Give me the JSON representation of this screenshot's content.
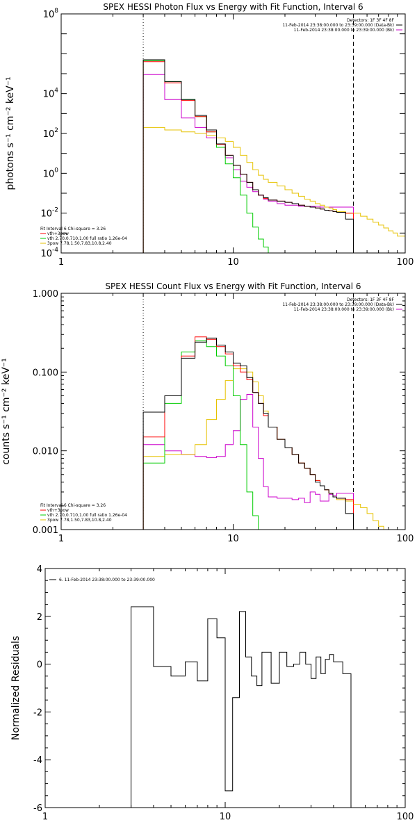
{
  "chart_data": [
    {
      "type": "line",
      "title": "SPEX HESSI Photon Flux vs Energy with Fit Function, Interval 6",
      "ylabel": "photons s⁻¹ cm⁻² keV⁻¹",
      "xlabel": "",
      "xscale": "log",
      "yscale": "log",
      "xlim": [
        1,
        100
      ],
      "ylim": [
        0.0001,
        100000000
      ],
      "xticks": [
        {
          "v": 1,
          "label": "1"
        },
        {
          "v": 10,
          "label": "10"
        },
        {
          "v": 100,
          "label": "100"
        }
      ],
      "yticks": [
        {
          "v": 0.0001,
          "base": "10",
          "exp": "-4"
        },
        {
          "v": 0.01,
          "base": "10",
          "exp": "-2"
        },
        {
          "v": 1,
          "base": "10",
          "exp": "0"
        },
        {
          "v": 100,
          "base": "10",
          "exp": "2"
        },
        {
          "v": 10000,
          "base": "10",
          "exp": "4"
        },
        {
          "v": 100000000,
          "base": "10",
          "exp": "8"
        }
      ],
      "vlines": [
        {
          "x": 3,
          "style": "dotted"
        },
        {
          "x": 50,
          "style": "dashed"
        }
      ],
      "legend_top": [
        {
          "text": "Detectors: 1F 3F 4F 8F",
          "color": "#000000"
        },
        {
          "text": "11-Feb-2014 23:38:00.000 to 23:39:00.000 (Data-Bk)",
          "color": "#000000"
        },
        {
          "text": "11-Feb-2014 23:38:00.000 to 23:39:00.000 (Bk)",
          "color": "#cc00cc"
        }
      ],
      "legend_bottom": [
        {
          "text": "Fit Interval 6   Chi-square = 3.26",
          "color": "#000000"
        },
        {
          "text": "vth+3pow",
          "color": "#ff0000"
        },
        {
          "text": "vth 2.70,0.710,1.00  full ratio 1.26e-04",
          "color": "#00cc00"
        },
        {
          "text": "3pow 7.78,1.50,7.83,10.8,2.40",
          "color": "#e6c200"
        }
      ],
      "edges": [
        3,
        4,
        5,
        6,
        7,
        8,
        9,
        10,
        11,
        12,
        13,
        14,
        15,
        16,
        18,
        20,
        22,
        24,
        26,
        28,
        30,
        32,
        34,
        36,
        38,
        40,
        45,
        50
      ],
      "series": [
        {
          "name": "Data-Bk",
          "color": "#000000",
          "values": [
            500000,
            40000,
            5000,
            800,
            150,
            30,
            8,
            2.5,
            0.9,
            0.35,
            0.15,
            0.08,
            0.06,
            0.045,
            0.04,
            0.035,
            0.03,
            0.025,
            0.022,
            0.02,
            0.018,
            0.016,
            0.014,
            0.013,
            0.012,
            0.011,
            0.005
          ]
        },
        {
          "name": "vth+3pow",
          "color": "#ff0000",
          "values": [
            400000,
            35000,
            4500,
            700,
            120,
            28,
            8,
            2.5,
            0.9,
            0.35,
            0.15,
            0.08,
            0.055,
            0.045,
            0.04,
            0.035,
            0.03,
            0.025,
            0.022,
            0.02,
            0.018,
            0.016,
            0.014,
            0.013,
            0.012,
            0.011,
            0.01
          ]
        },
        {
          "name": "vth",
          "color": "#00cc00",
          "values": [
            450000,
            40000,
            5000,
            700,
            120,
            20,
            3,
            0.6,
            0.08,
            0.01,
            0.002,
            0.0005,
            0.0002,
            0.0001
          ]
        },
        {
          "name": "3pow",
          "color": "#e6c200",
          "values": [
            200,
            150,
            120,
            100,
            80,
            60,
            40,
            20,
            8,
            3.5,
            1.5,
            0.8,
            0.5,
            0.35,
            0.23,
            0.15,
            0.1,
            0.07,
            0.05,
            0.04,
            0.03,
            0.025,
            0.02,
            0.018,
            0.015,
            0.012,
            0.01
          ]
        },
        {
          "name": "Bk",
          "color": "#cc00cc",
          "values": [
            90000,
            5000,
            600,
            200,
            60,
            20,
            6,
            1.5,
            0.4,
            0.2,
            0.12,
            0.08,
            0.05,
            0.04,
            0.03,
            0.025,
            0.025,
            0.022,
            0.022,
            0.022,
            0.022,
            0.02,
            0.02,
            0.02,
            0.02,
            0.02,
            0.02
          ]
        }
      ],
      "extension": {
        "color": "#e6c200",
        "edges": [
          50,
          55,
          60,
          65,
          70,
          75,
          80,
          85,
          90,
          100
        ],
        "values": [
          0.01,
          0.007,
          0.005,
          0.0035,
          0.0025,
          0.0018,
          0.0013,
          0.001,
          0.0007
        ]
      }
    },
    {
      "type": "line",
      "title": "SPEX HESSI Count Flux vs Energy with Fit Function, Interval 6",
      "ylabel": "counts s⁻¹ cm⁻² keV⁻¹",
      "xlabel": "",
      "xscale": "log",
      "yscale": "log",
      "xlim": [
        1,
        100
      ],
      "ylim": [
        0.001,
        1
      ],
      "xticks": [
        {
          "v": 1,
          "label": "1"
        },
        {
          "v": 10,
          "label": "10"
        },
        {
          "v": 100,
          "label": "100"
        }
      ],
      "yticks": [
        {
          "v": 0.001,
          "label": "0.001"
        },
        {
          "v": 0.01,
          "label": "0.010"
        },
        {
          "v": 0.1,
          "label": "0.100"
        },
        {
          "v": 1,
          "label": "1.000"
        }
      ],
      "vlines": [
        {
          "x": 3,
          "style": "dotted"
        },
        {
          "x": 50,
          "style": "dashed"
        }
      ],
      "legend_top": [
        {
          "text": "Detectors: 1F 3F 4F 8F",
          "color": "#000000"
        },
        {
          "text": "11-Feb-2014 23:38:00.000 to 23:39:00.000 (Data-Bk)",
          "color": "#000000"
        },
        {
          "text": "11-Feb-2014 23:38:00.000 to 23:39:00.000 (Bk)",
          "color": "#cc00cc"
        }
      ],
      "legend_bottom": [
        {
          "text": "Fit Interval 6   Chi-square = 3.26",
          "color": "#000000"
        },
        {
          "text": "vth+3pow",
          "color": "#ff0000"
        },
        {
          "text": "vth 2.70,0.710,1.00  full ratio 1.26e-04",
          "color": "#00cc00"
        },
        {
          "text": "3pow 7.78,1.50,7.83,10.8,2.40",
          "color": "#e6c200"
        }
      ],
      "edges": [
        3,
        4,
        5,
        6,
        7,
        8,
        9,
        10,
        11,
        12,
        13,
        14,
        15,
        16,
        18,
        20,
        22,
        24,
        26,
        28,
        30,
        32,
        34,
        36,
        38,
        40,
        45,
        50
      ],
      "series": [
        {
          "name": "Data-Bk",
          "color": "#000000",
          "values": [
            0.031,
            0.05,
            0.15,
            0.24,
            0.27,
            0.22,
            0.18,
            0.13,
            0.12,
            0.085,
            0.055,
            0.04,
            0.03,
            0.02,
            0.014,
            0.011,
            0.009,
            0.007,
            0.006,
            0.005,
            0.004,
            0.0036,
            0.0032,
            0.0029,
            0.0026,
            0.0025,
            0.0016
          ]
        },
        {
          "name": "vth+3pow",
          "color": "#ff0000",
          "values": [
            0.015,
            0.05,
            0.16,
            0.28,
            0.26,
            0.21,
            0.17,
            0.12,
            0.1,
            0.08,
            0.055,
            0.04,
            0.028,
            0.02,
            0.014,
            0.011,
            0.009,
            0.007,
            0.006,
            0.005,
            0.0042,
            0.0036,
            0.0032,
            0.0029,
            0.0026,
            0.0025,
            0.0024
          ]
        },
        {
          "name": "vth",
          "color": "#00cc00",
          "values": [
            0.007,
            0.04,
            0.18,
            0.25,
            0.21,
            0.16,
            0.12,
            0.05,
            0.012,
            0.003,
            0.0015,
            0.001
          ]
        },
        {
          "name": "3pow",
          "color": "#e6c200",
          "values": [
            0.0085,
            0.009,
            0.009,
            0.012,
            0.025,
            0.045,
            0.078,
            0.11,
            0.11,
            0.1,
            0.075,
            0.05,
            0.032,
            0.02,
            0.014,
            0.011,
            0.009,
            0.007,
            0.006,
            0.005,
            0.0042,
            0.0036,
            0.0032,
            0.0029,
            0.0026,
            0.0024,
            0.0023
          ]
        },
        {
          "name": "Bk",
          "color": "#cc00cc",
          "values": [
            0.012,
            0.01,
            0.009,
            0.0085,
            0.0082,
            0.0085,
            0.012,
            0.018,
            0.045,
            0.052,
            0.02,
            0.008,
            0.0035,
            0.0026,
            0.0025,
            0.0025,
            0.0024,
            0.0025,
            0.0022,
            0.003,
            0.0028,
            0.0023,
            0.0023,
            0.0028,
            0.0027,
            0.0029,
            0.0029
          ]
        }
      ],
      "extension": {
        "color": "#e6c200",
        "edges": [
          50,
          55,
          60,
          65,
          70,
          75,
          80
        ],
        "values": [
          0.0021,
          0.0019,
          0.0016,
          0.0013,
          0.0011,
          0.001
        ]
      }
    },
    {
      "type": "line",
      "title": "",
      "ylabel": "Normalized Residuals",
      "xlabel": "",
      "xscale": "log",
      "yscale": "linear",
      "xlim": [
        1,
        100
      ],
      "ylim": [
        -6,
        4
      ],
      "xticks": [
        {
          "v": 1,
          "label": "1"
        },
        {
          "v": 10,
          "label": "10"
        },
        {
          "v": 100,
          "label": "100"
        }
      ],
      "yticks": [
        {
          "v": -6,
          "label": "-6"
        },
        {
          "v": -4,
          "label": "-4"
        },
        {
          "v": -2,
          "label": "-2"
        },
        {
          "v": 0,
          "label": "0"
        },
        {
          "v": 2,
          "label": "2"
        },
        {
          "v": 4,
          "label": "4"
        }
      ],
      "vlines": [],
      "legend_top": [
        {
          "text": "6. 11-Feb-2014 23:38:00.000 to 23:39:00.000",
          "color": "#000000",
          "swatch": true
        }
      ],
      "legend_bottom": [],
      "edges": [
        3,
        4,
        5,
        6,
        7,
        8,
        9,
        10,
        11,
        12,
        13,
        14,
        15,
        16,
        18,
        20,
        22,
        24,
        26,
        28,
        30,
        32,
        34,
        36,
        38,
        40,
        45,
        50
      ],
      "series": [
        {
          "name": "",
          "color": "#000000",
          "values": [
            2.4,
            -0.1,
            -0.5,
            0.1,
            -0.7,
            1.9,
            1.1,
            -5.3,
            -1.4,
            2.2,
            0.3,
            -0.5,
            -0.9,
            0.5,
            -0.8,
            0.5,
            -0.1,
            0,
            0.5,
            0,
            -0.6,
            0.3,
            -0.4,
            0.2,
            0.4,
            0.1,
            -0.4
          ]
        }
      ],
      "extension": null
    }
  ]
}
